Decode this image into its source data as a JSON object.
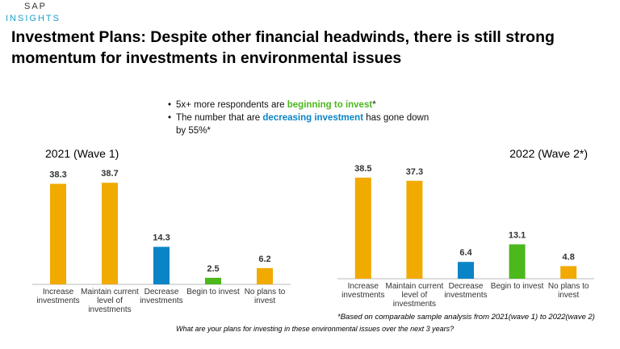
{
  "logo": {
    "brand": "SAP",
    "product": "INSIGHTS"
  },
  "title": "Investment Plans: Despite other financial headwinds, there is still strong momentum for investments in environmental issues",
  "bullets": [
    {
      "parts": [
        "5x+ more respondents are ",
        "beginning to invest",
        "*"
      ]
    },
    {
      "parts": [
        "The number that are ",
        "decreasing investment",
        " has gone down by 55%*"
      ]
    }
  ],
  "chart_data": [
    {
      "type": "bar",
      "title": "2021 (Wave 1)",
      "categories": [
        "Increase investments",
        "Maintain current level of investments",
        "Decrease investments",
        "Begin to invest",
        "No plans to invest"
      ],
      "values": [
        38.3,
        38.7,
        14.3,
        2.5,
        6.2
      ],
      "colors": [
        "#f0aa00",
        "#f0aa00",
        "#0b84c6",
        "#4cb81c",
        "#f0aa00"
      ]
    },
    {
      "type": "bar",
      "title": "2022 (Wave 2*)",
      "categories": [
        "Increase investments",
        "Maintain current level of investments",
        "Decrease investments",
        "Begin to invest",
        "No plans to invest"
      ],
      "values": [
        38.5,
        37.3,
        6.4,
        13.1,
        4.8
      ],
      "colors": [
        "#f0aa00",
        "#f0aa00",
        "#0b84c6",
        "#4cb81c",
        "#f0aa00"
      ]
    }
  ],
  "footnote": "*Based on comparable sample analysis from 2021(wave 1) to 2022(wave 2)",
  "question": "What are your plans for investing in these environmental issues over the next 3 years?"
}
